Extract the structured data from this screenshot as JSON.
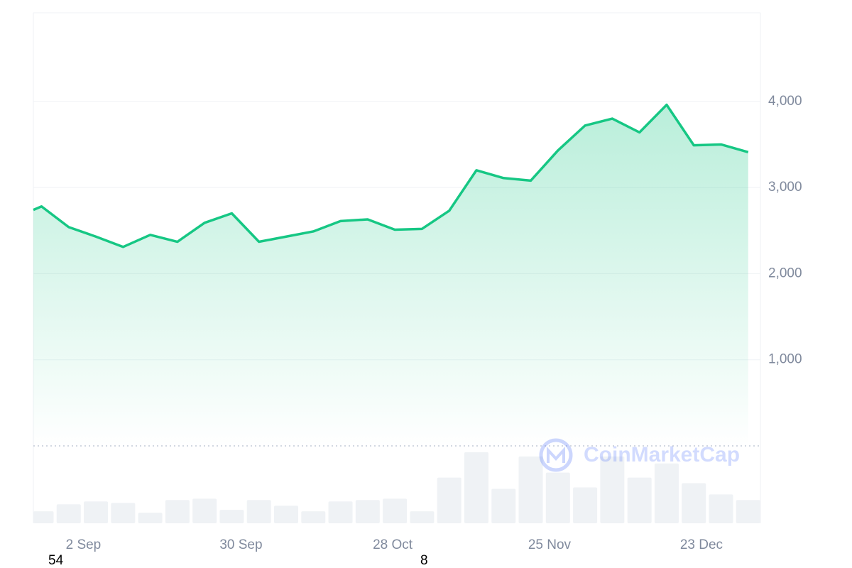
{
  "chart_data": {
    "type": "area",
    "x": [
      -0.3,
      0,
      1,
      2,
      3,
      4,
      5,
      6,
      7,
      8,
      9,
      10,
      11,
      12,
      13,
      14,
      15,
      16,
      17,
      18,
      19,
      20,
      21,
      22,
      23,
      24,
      25,
      26
    ],
    "series": [
      {
        "name": "Price",
        "color": "#16c784",
        "values": [
          2740,
          2780,
          2540,
          2430,
          2310,
          2450,
          2370,
          2590,
          2700,
          2370,
          2430,
          2490,
          2610,
          2630,
          2510,
          2520,
          2730,
          3200,
          3110,
          3080,
          3430,
          3720,
          3800,
          3640,
          3960,
          3490,
          3500,
          3410
        ]
      }
    ],
    "volume": {
      "color": "#eff2f5",
      "x": [
        0,
        1,
        2,
        3,
        4,
        5,
        6,
        7,
        8,
        9,
        10,
        11,
        12,
        13,
        14,
        15,
        16,
        17,
        18,
        19,
        20,
        21,
        22,
        23,
        24,
        25,
        26
      ],
      "values": [
        17,
        27,
        31,
        29,
        15,
        33,
        35,
        19,
        33,
        25,
        17,
        31,
        33,
        35,
        17,
        65,
        101,
        49,
        95,
        72,
        51,
        95,
        65,
        85,
        57,
        41,
        33
      ],
      "vlim": [
        0,
        110
      ]
    },
    "xlim": [
      -0.3,
      26.45
    ],
    "xticks": [
      {
        "value": 1.54,
        "label": "2 Sep"
      },
      {
        "value": 7.34,
        "label": "30 Sep"
      },
      {
        "value": 12.92,
        "label": "28 Oct"
      },
      {
        "value": 18.69,
        "label": "25 Nov"
      },
      {
        "value": 24.28,
        "label": "23 Dec"
      }
    ],
    "ylim": [
      0,
      5000
    ],
    "yticks": [
      {
        "value": 1000,
        "label": "1,000"
      },
      {
        "value": 2000,
        "label": "2,000"
      },
      {
        "value": 3000,
        "label": "3,000"
      },
      {
        "value": 4000,
        "label": "4,000"
      }
    ],
    "grid": true,
    "watermark": "CoinMarketCap",
    "annotations": [
      "54",
      "8"
    ]
  }
}
